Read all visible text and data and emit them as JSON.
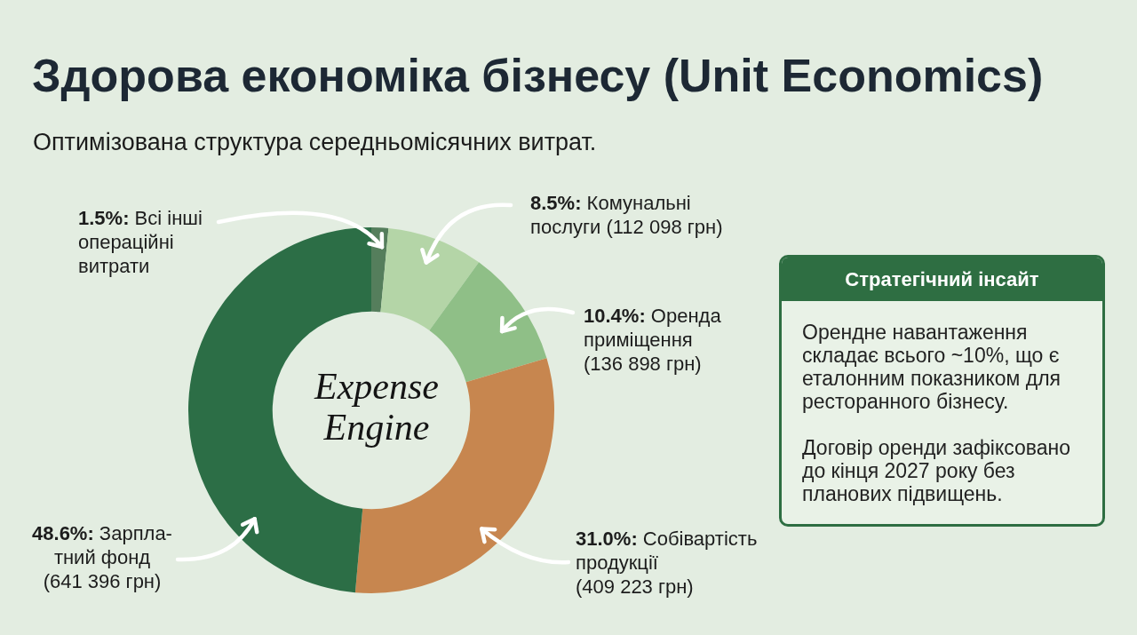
{
  "chart_data": [
    {
      "type": "donut",
      "title": "Здорова економіка бізнесу (Unit Economics)",
      "subtitle": "Оптимізована структура середньомісячних витрат.",
      "categories": [
        "1.5%: Всі інші операційні витрати",
        "8.5%: Комунальні послуги (112 098 грн)",
        "10.4%: Оренда приміщення (136 898 грн)",
        "31.0%: Собівартість продукції (409 223 грн)",
        "48.6%: Зарпла-тний фонд (641 396 грн)"
      ],
      "values": [
        1.5,
        8.5,
        10.4,
        31.0,
        48.6
      ],
      "colors": [
        "#557e5c",
        "#b4d5a7",
        "#8fbf87",
        "#c7864f",
        "#2c6e46"
      ],
      "annotations": [
        "Expense Engine"
      ]
    },
    {
      "type": "other",
      "title": "Стратегічний інсайт",
      "annotations": [
        "Орендне навантаження складає всього ~10%, що є еталонним показником для ресторанного бізнесу.",
        "Договір оренди зафіксовано до кінця 2027 року без планових підвищень."
      ]
    }
  ]
}
